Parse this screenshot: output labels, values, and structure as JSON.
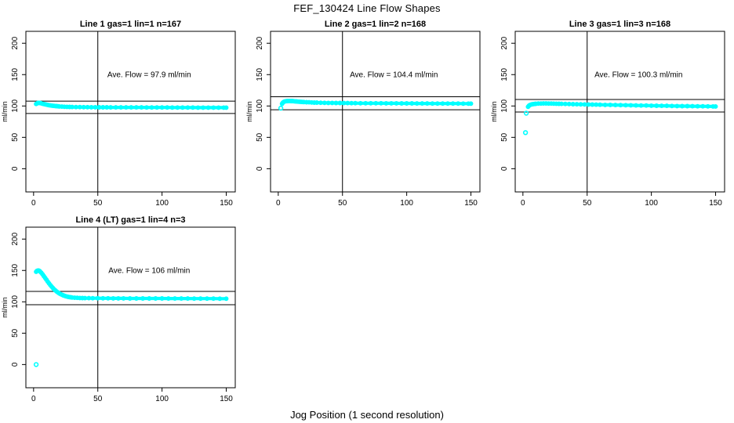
{
  "figure": {
    "title": "FEF_130424  Line Flow Shapes",
    "xlabel": "Jog Position (1 second resolution)",
    "background_color": "#FFFFFF",
    "axis_color": "#000000",
    "text_color": "#000000"
  },
  "chart_data": [
    {
      "type": "scatter",
      "title": "Line 1 gas=1 lin=1 n=167",
      "ylabel": "ml/min",
      "annotation": "Ave. Flow =  97.9  ml/min",
      "ave_flow": 97.9,
      "marker_color": "#00FFFF",
      "x_ticks": [
        0,
        50,
        100,
        150
      ],
      "y_ticks": [
        0,
        50,
        100,
        150,
        200
      ],
      "xlim": [
        -6,
        157
      ],
      "ylim": [
        -37,
        219
      ],
      "vline_x": 50,
      "hlines": [
        107.7,
        88.1
      ],
      "annotation_pos": [
        90,
        150
      ],
      "outliers": [],
      "points": [
        [
          2,
          103.3
        ],
        [
          2.7,
          104.2
        ],
        [
          3.4,
          104.8
        ],
        [
          4,
          105.0
        ],
        [
          4.6,
          104.9
        ],
        [
          5.3,
          104.6
        ],
        [
          6,
          104.2
        ],
        [
          7,
          103.6
        ],
        [
          8,
          103.1
        ],
        [
          9,
          102.6
        ],
        [
          10,
          102.1
        ],
        [
          11,
          101.7
        ],
        [
          12,
          101.3
        ],
        [
          13,
          100.9
        ],
        [
          14,
          100.6
        ],
        [
          15,
          100.3
        ],
        [
          16,
          100.1
        ],
        [
          17,
          99.9
        ],
        [
          18,
          99.7
        ],
        [
          19,
          99.5
        ],
        [
          20,
          99.3
        ],
        [
          22,
          99.0
        ],
        [
          24,
          98.8
        ],
        [
          26,
          98.6
        ],
        [
          28,
          98.5
        ],
        [
          30,
          98.4
        ],
        [
          33,
          98.3
        ],
        [
          36,
          98.2
        ],
        [
          39,
          98.1
        ],
        [
          42,
          98.1
        ],
        [
          45,
          98.0
        ],
        [
          48,
          98.0
        ],
        [
          51,
          97.9
        ],
        [
          54,
          97.9
        ],
        [
          57,
          97.9
        ],
        [
          60,
          97.8
        ],
        [
          64,
          97.8
        ],
        [
          68,
          97.8
        ],
        [
          72,
          97.7
        ],
        [
          76,
          97.7
        ],
        [
          80,
          97.7
        ],
        [
          84,
          97.7
        ],
        [
          88,
          97.6
        ],
        [
          92,
          97.6
        ],
        [
          96,
          97.6
        ],
        [
          100,
          97.6
        ],
        [
          104,
          97.6
        ],
        [
          108,
          97.5
        ],
        [
          112,
          97.5
        ],
        [
          116,
          97.5
        ],
        [
          120,
          97.5
        ],
        [
          124,
          97.5
        ],
        [
          128,
          97.4
        ],
        [
          132,
          97.4
        ],
        [
          136,
          97.4
        ],
        [
          140,
          97.4
        ],
        [
          144,
          97.4
        ],
        [
          148,
          97.4
        ],
        [
          150,
          97.4
        ]
      ]
    },
    {
      "type": "scatter",
      "title": "Line 2 gas=1 lin=2 n=168",
      "ylabel": "ml/min",
      "annotation": "Ave. Flow =  104.4  ml/min",
      "ave_flow": 104.4,
      "marker_color": "#00FFFF",
      "x_ticks": [
        0,
        50,
        100,
        150
      ],
      "y_ticks": [
        0,
        50,
        100,
        150,
        200
      ],
      "xlim": [
        -6,
        157
      ],
      "ylim": [
        -37,
        219
      ],
      "vline_x": 50,
      "hlines": [
        114.8,
        94.0
      ],
      "annotation_pos": [
        90,
        150
      ],
      "outliers": [
        [
          2,
          96.5
        ]
      ],
      "points": [
        [
          3,
          103.5
        ],
        [
          3.6,
          105.2
        ],
        [
          4.2,
          106.3
        ],
        [
          5,
          107.1
        ],
        [
          6,
          107.6
        ],
        [
          7,
          107.9
        ],
        [
          8,
          108.0
        ],
        [
          9,
          108.0
        ],
        [
          10,
          107.9
        ],
        [
          11,
          107.8
        ],
        [
          12,
          107.6
        ],
        [
          13,
          107.4
        ],
        [
          14,
          107.2
        ],
        [
          15,
          107.0
        ],
        [
          16,
          106.8
        ],
        [
          17,
          106.7
        ],
        [
          18,
          106.5
        ],
        [
          19,
          106.4
        ],
        [
          20,
          106.2
        ],
        [
          22,
          106.0
        ],
        [
          24,
          105.8
        ],
        [
          26,
          105.6
        ],
        [
          28,
          105.4
        ],
        [
          30,
          105.3
        ],
        [
          33,
          105.1
        ],
        [
          36,
          105.0
        ],
        [
          39,
          104.9
        ],
        [
          42,
          104.8
        ],
        [
          45,
          104.7
        ],
        [
          48,
          104.7
        ],
        [
          51,
          104.6
        ],
        [
          54,
          104.6
        ],
        [
          57,
          104.5
        ],
        [
          60,
          104.5
        ],
        [
          64,
          104.4
        ],
        [
          68,
          104.4
        ],
        [
          72,
          104.3
        ],
        [
          76,
          104.3
        ],
        [
          80,
          104.3
        ],
        [
          84,
          104.2
        ],
        [
          88,
          104.2
        ],
        [
          92,
          104.2
        ],
        [
          96,
          104.1
        ],
        [
          100,
          104.1
        ],
        [
          104,
          104.1
        ],
        [
          108,
          104.0
        ],
        [
          112,
          104.0
        ],
        [
          116,
          104.0
        ],
        [
          120,
          103.9
        ],
        [
          124,
          103.9
        ],
        [
          128,
          103.9
        ],
        [
          132,
          103.8
        ],
        [
          136,
          103.8
        ],
        [
          140,
          103.8
        ],
        [
          144,
          103.7
        ],
        [
          148,
          103.7
        ],
        [
          150,
          103.7
        ]
      ]
    },
    {
      "type": "scatter",
      "title": "Line 3 gas=1 lin=3 n=168",
      "ylabel": "ml/min",
      "annotation": "Ave. Flow =  100.3  ml/min",
      "ave_flow": 100.3,
      "marker_color": "#00FFFF",
      "x_ticks": [
        0,
        50,
        100,
        150
      ],
      "y_ticks": [
        0,
        50,
        100,
        150,
        200
      ],
      "xlim": [
        -6,
        157
      ],
      "ylim": [
        -37,
        219
      ],
      "vline_x": 50,
      "hlines": [
        110.3,
        90.3
      ],
      "annotation_pos": [
        90,
        150
      ],
      "outliers": [
        [
          2,
          57.5
        ],
        [
          2.6,
          88.5
        ]
      ],
      "points": [
        [
          4,
          98.8
        ],
        [
          4.6,
          100.2
        ],
        [
          5.2,
          101.2
        ],
        [
          6,
          102.0
        ],
        [
          7,
          102.6
        ],
        [
          8,
          103.0
        ],
        [
          9,
          103.3
        ],
        [
          10,
          103.5
        ],
        [
          12,
          103.8
        ],
        [
          14,
          103.9
        ],
        [
          16,
          104.0
        ],
        [
          18,
          104.0
        ],
        [
          20,
          103.9
        ],
        [
          22,
          103.8
        ],
        [
          24,
          103.7
        ],
        [
          26,
          103.6
        ],
        [
          28,
          103.5
        ],
        [
          30,
          103.4
        ],
        [
          33,
          103.2
        ],
        [
          36,
          103.1
        ],
        [
          39,
          102.9
        ],
        [
          42,
          102.8
        ],
        [
          45,
          102.6
        ],
        [
          48,
          102.5
        ],
        [
          51,
          102.4
        ],
        [
          54,
          102.2
        ],
        [
          57,
          102.1
        ],
        [
          60,
          102.0
        ],
        [
          64,
          101.8
        ],
        [
          68,
          101.7
        ],
        [
          72,
          101.5
        ],
        [
          76,
          101.4
        ],
        [
          80,
          101.2
        ],
        [
          84,
          101.1
        ],
        [
          88,
          100.9
        ],
        [
          92,
          100.8
        ],
        [
          96,
          100.7
        ],
        [
          100,
          100.5
        ],
        [
          104,
          100.4
        ],
        [
          108,
          100.3
        ],
        [
          112,
          100.2
        ],
        [
          116,
          100.0
        ],
        [
          120,
          99.9
        ],
        [
          124,
          99.8
        ],
        [
          128,
          99.7
        ],
        [
          132,
          99.6
        ],
        [
          136,
          99.5
        ],
        [
          140,
          99.5
        ],
        [
          144,
          99.4
        ],
        [
          148,
          99.3
        ],
        [
          150,
          99.3
        ]
      ]
    },
    {
      "type": "scatter",
      "title": "Line 4 (LT) gas=1 lin=4 n=3",
      "ylabel": "ml/min",
      "annotation": "Ave. Flow =  106  ml/min",
      "ave_flow": 106,
      "marker_color": "#00FFFF",
      "x_ticks": [
        0,
        50,
        100,
        150
      ],
      "y_ticks": [
        0,
        50,
        100,
        150,
        200
      ],
      "xlim": [
        -6,
        157
      ],
      "ylim": [
        -37,
        219
      ],
      "vline_x": 50,
      "hlines": [
        116.6,
        95.4
      ],
      "annotation_pos": [
        90,
        150
      ],
      "outliers": [
        [
          2,
          0
        ]
      ],
      "points": [
        [
          2,
          148.0
        ],
        [
          2.6,
          149.3
        ],
        [
          3.2,
          149.8
        ],
        [
          3.8,
          149.9
        ],
        [
          4.4,
          149.4
        ],
        [
          5,
          148.4
        ],
        [
          6,
          146.3
        ],
        [
          7,
          143.8
        ],
        [
          8,
          141.0
        ],
        [
          9,
          138.1
        ],
        [
          10,
          135.2
        ],
        [
          11,
          132.3
        ],
        [
          12,
          129.5
        ],
        [
          13,
          126.9
        ],
        [
          14,
          124.4
        ],
        [
          15,
          122.1
        ],
        [
          16,
          120.0
        ],
        [
          17,
          118.1
        ],
        [
          18,
          116.4
        ],
        [
          19,
          114.9
        ],
        [
          20,
          113.5
        ],
        [
          21,
          112.3
        ],
        [
          22,
          111.3
        ],
        [
          23,
          110.4
        ],
        [
          24,
          109.6
        ],
        [
          25,
          108.9
        ],
        [
          26,
          108.4
        ],
        [
          27,
          107.9
        ],
        [
          28,
          107.5
        ],
        [
          29,
          107.2
        ],
        [
          30,
          106.9
        ],
        [
          32,
          106.5
        ],
        [
          34,
          106.3
        ],
        [
          36,
          106.1
        ],
        [
          38,
          106.0
        ],
        [
          40,
          105.9
        ],
        [
          43,
          105.8
        ],
        [
          46,
          105.7
        ],
        [
          50,
          105.7
        ],
        [
          54,
          105.6
        ],
        [
          58,
          105.6
        ],
        [
          62,
          105.5
        ],
        [
          66,
          105.5
        ],
        [
          70,
          105.5
        ],
        [
          75,
          105.4
        ],
        [
          80,
          105.4
        ],
        [
          85,
          105.4
        ],
        [
          90,
          105.3
        ],
        [
          95,
          105.3
        ],
        [
          100,
          105.3
        ],
        [
          105,
          105.2
        ],
        [
          110,
          105.2
        ],
        [
          115,
          105.2
        ],
        [
          120,
          105.2
        ],
        [
          125,
          105.1
        ],
        [
          130,
          105.1
        ],
        [
          135,
          105.1
        ],
        [
          140,
          105.1
        ],
        [
          145,
          105.0
        ],
        [
          150,
          105.0
        ]
      ]
    }
  ]
}
